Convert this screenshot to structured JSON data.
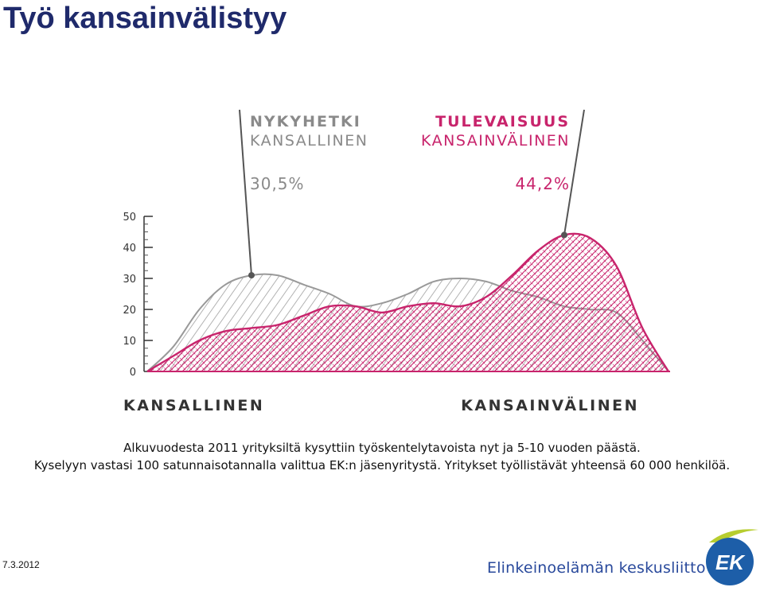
{
  "page": {
    "title": "Työ kansainvälistyy",
    "caption_line1": "Alkuvuodesta 2011 yrityksiltä kysyttiin työskentelytavoista nyt ja 5-10 vuoden päästä.",
    "caption_line2": "Kyselyyn vastasi 100 satunnaisotannalla valittua EK:n jäsenyritystä. Yritykset työllistävät yhteensä 60 000 henkilöä.",
    "date": "7.3.2012",
    "organization": "Elinkeinoelämän keskusliitto",
    "logo_text": "EK"
  },
  "chart_data": {
    "type": "area",
    "y_ticks": [
      "0",
      "10",
      "20",
      "30",
      "40",
      "50"
    ],
    "ylim": [
      0,
      50
    ],
    "x_left_label": "KANSALLINEN",
    "x_right_label": "KANSAINVÄLINEN",
    "x": [
      0,
      0.05,
      0.1,
      0.15,
      0.2,
      0.25,
      0.3,
      0.35,
      0.4,
      0.45,
      0.5,
      0.55,
      0.6,
      0.65,
      0.7,
      0.75,
      0.8,
      0.85,
      0.9,
      0.95,
      1.0
    ],
    "series": [
      {
        "name": "NYKYHETKI",
        "subtitle": "KANSALLINEN",
        "value_label": "30,5%",
        "color": "#999999",
        "values": [
          0,
          8,
          20,
          28,
          31,
          31,
          28,
          25,
          21,
          22,
          25,
          29,
          30,
          29,
          26,
          24,
          21,
          20,
          19,
          10,
          0
        ]
      },
      {
        "name": "TULEVAISUUS",
        "subtitle": "KANSAINVÄLINEN",
        "value_label": "44,2%",
        "color": "#c8246c",
        "values": [
          0,
          5,
          10,
          13,
          14,
          15,
          18,
          21,
          21,
          19,
          21,
          22,
          21,
          24,
          31,
          39,
          44,
          43,
          34,
          14,
          0
        ]
      }
    ]
  }
}
